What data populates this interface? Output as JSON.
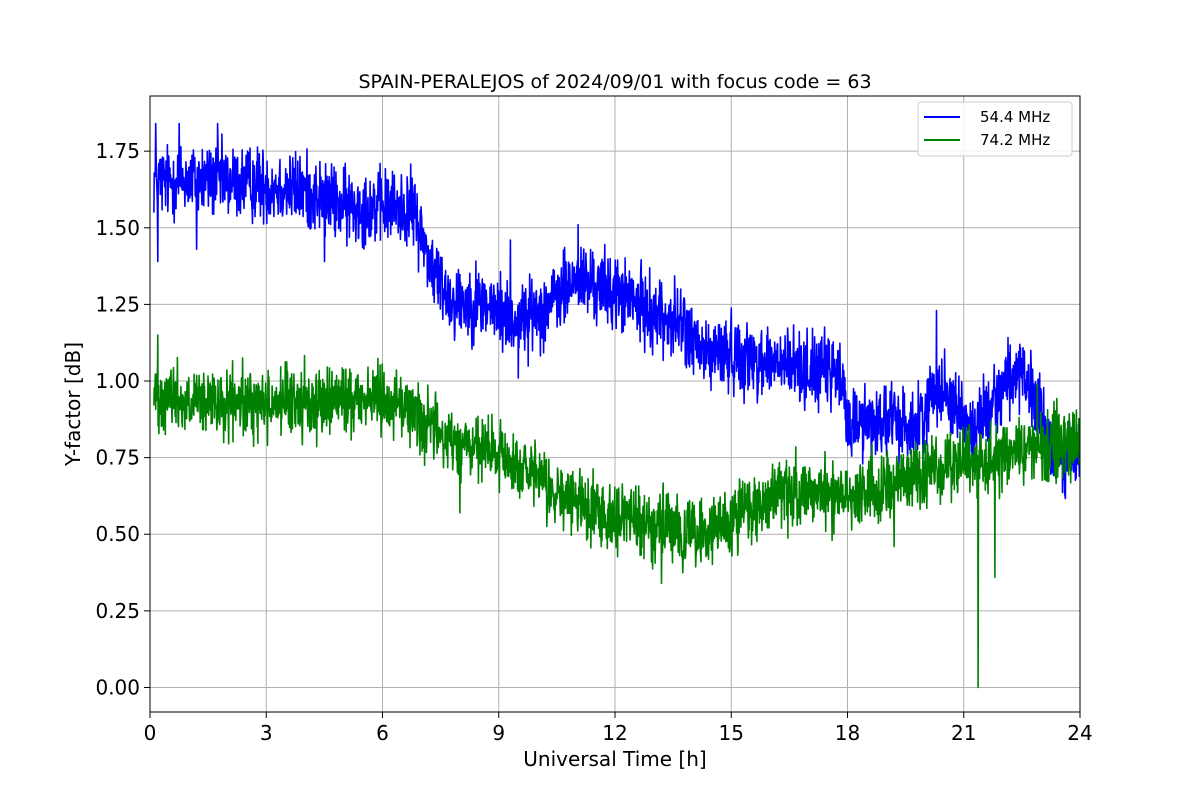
{
  "chart_data": {
    "type": "line",
    "title": "SPAIN-PERALEJOS of 2024/09/01 with focus code = 63",
    "xlabel": "Universal Time [h]",
    "ylabel": "Y-factor [dB]",
    "xlim": [
      0,
      24
    ],
    "ylim": [
      -0.08,
      1.93
    ],
    "xticks": [
      0,
      3,
      6,
      9,
      12,
      15,
      18,
      21,
      24
    ],
    "xtick_labels": [
      "0",
      "3",
      "6",
      "9",
      "12",
      "15",
      "18",
      "21",
      "24"
    ],
    "yticks": [
      0,
      0.25,
      0.5,
      0.75,
      1.0,
      1.25,
      1.5,
      1.75
    ],
    "ytick_labels": [
      "0.00",
      "0.25",
      "0.50",
      "0.75",
      "1.00",
      "1.25",
      "1.50",
      "1.75"
    ],
    "grid": true,
    "legend_position": "top-right",
    "series": [
      {
        "name": "54.4 MHz",
        "color": "#0000ff",
        "baseline": [
          [
            0.1,
            1.66
          ],
          [
            0.5,
            1.65
          ],
          [
            1.0,
            1.66
          ],
          [
            2.0,
            1.65
          ],
          [
            3.0,
            1.64
          ],
          [
            4.0,
            1.62
          ],
          [
            5.0,
            1.57
          ],
          [
            6.0,
            1.57
          ],
          [
            6.8,
            1.56
          ],
          [
            7.3,
            1.36
          ],
          [
            7.8,
            1.26
          ],
          [
            8.5,
            1.26
          ],
          [
            9.5,
            1.19
          ],
          [
            10.3,
            1.25
          ],
          [
            11.0,
            1.33
          ],
          [
            12.0,
            1.29
          ],
          [
            13.0,
            1.22
          ],
          [
            13.8,
            1.18
          ],
          [
            14.2,
            1.09
          ],
          [
            15.0,
            1.09
          ],
          [
            16.0,
            1.06
          ],
          [
            17.0,
            1.04
          ],
          [
            17.8,
            1.02
          ],
          [
            18.0,
            0.87
          ],
          [
            19.0,
            0.87
          ],
          [
            19.8,
            0.85
          ],
          [
            20.3,
            0.99
          ],
          [
            20.8,
            0.93
          ],
          [
            21.2,
            0.82
          ],
          [
            21.8,
            0.95
          ],
          [
            22.3,
            1.03
          ],
          [
            22.9,
            0.93
          ],
          [
            23.2,
            0.78
          ],
          [
            24.0,
            0.75
          ]
        ],
        "noise_amplitude": 0.06,
        "spikes": [
          [
            0.15,
            1.84
          ],
          [
            0.2,
            1.39
          ],
          [
            0.75,
            1.84
          ],
          [
            1.2,
            1.43
          ],
          [
            1.75,
            1.84
          ],
          [
            4.5,
            1.39
          ],
          [
            9.3,
            1.46
          ],
          [
            11.05,
            1.51
          ],
          [
            20.3,
            1.23
          ],
          [
            9.5,
            1.01
          ]
        ]
      },
      {
        "name": "74.2 MHz",
        "color": "#008000",
        "baseline": [
          [
            0.1,
            0.96
          ],
          [
            0.5,
            0.96
          ],
          [
            1.0,
            0.92
          ],
          [
            2.0,
            0.92
          ],
          [
            3.0,
            0.93
          ],
          [
            4.0,
            0.93
          ],
          [
            5.0,
            0.94
          ],
          [
            6.0,
            0.95
          ],
          [
            6.8,
            0.9
          ],
          [
            7.3,
            0.84
          ],
          [
            8.0,
            0.79
          ],
          [
            9.0,
            0.76
          ],
          [
            9.8,
            0.69
          ],
          [
            10.5,
            0.63
          ],
          [
            11.5,
            0.58
          ],
          [
            12.5,
            0.55
          ],
          [
            13.5,
            0.51
          ],
          [
            14.3,
            0.5
          ],
          [
            15.0,
            0.54
          ],
          [
            16.0,
            0.62
          ],
          [
            17.0,
            0.64
          ],
          [
            18.0,
            0.63
          ],
          [
            19.0,
            0.66
          ],
          [
            20.0,
            0.7
          ],
          [
            21.0,
            0.73
          ],
          [
            22.0,
            0.76
          ],
          [
            23.0,
            0.79
          ],
          [
            24.0,
            0.81
          ]
        ],
        "noise_amplitude": 0.055,
        "spikes": [
          [
            0.2,
            1.15
          ],
          [
            0.35,
            0.84
          ],
          [
            8.0,
            0.57
          ],
          [
            13.2,
            0.34
          ],
          [
            19.2,
            0.46
          ],
          [
            21.37,
            0.0
          ],
          [
            21.8,
            0.36
          ],
          [
            22.9,
            0.99
          ]
        ]
      }
    ]
  }
}
